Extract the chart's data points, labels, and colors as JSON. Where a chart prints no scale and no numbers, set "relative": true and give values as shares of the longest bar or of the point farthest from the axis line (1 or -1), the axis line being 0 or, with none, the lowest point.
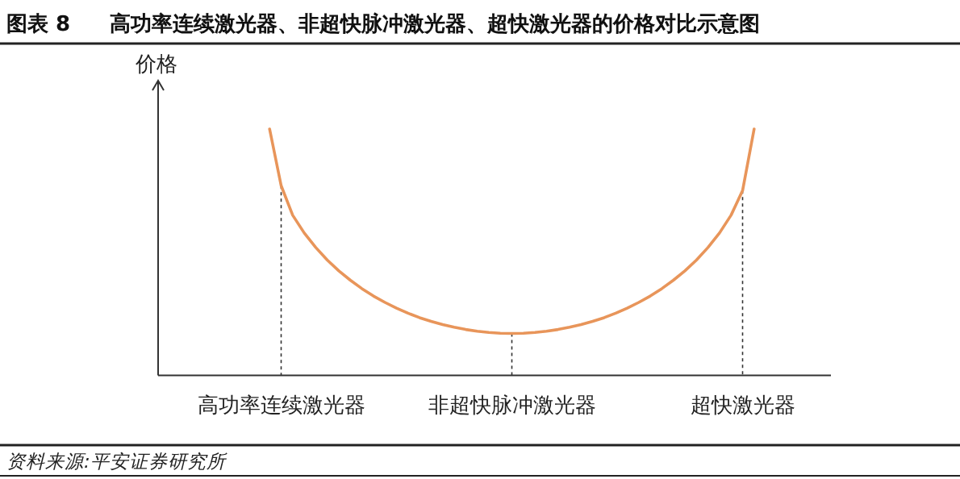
{
  "chart_data": {
    "type": "line",
    "title": "图表 8",
    "subtitle": "高功率连续激光器、非超快脉冲激光器、超快激光器的价格对比示意图",
    "ylabel": "价格",
    "relative": true,
    "categories": [
      null,
      "高功率连续激光器",
      null,
      null,
      null,
      null,
      null,
      null,
      null,
      null,
      null,
      null,
      null,
      null,
      null,
      null,
      null,
      null,
      null,
      null,
      null,
      "非超快脉冲激光器",
      null,
      null,
      null,
      null,
      null,
      null,
      null,
      null,
      null,
      null,
      null,
      null,
      null,
      null,
      null,
      null,
      null,
      null,
      null,
      "超快激光器",
      null
    ],
    "series": [
      {
        "color": "#e8955a",
        "values": [
          1.0,
          0.77,
          0.65,
          0.578,
          0.519,
          0.468,
          0.424,
          0.386,
          0.352,
          0.322,
          0.296,
          0.273,
          0.252,
          0.234,
          0.219,
          0.206,
          0.195,
          0.186,
          0.179,
          0.174,
          0.171,
          0.17,
          0.171,
          0.174,
          0.179,
          0.186,
          0.195,
          0.206,
          0.219,
          0.234,
          0.252,
          0.273,
          0.296,
          0.322,
          0.352,
          0.386,
          0.424,
          0.468,
          0.519,
          0.578,
          0.65,
          0.75,
          1.0
        ]
      }
    ],
    "annotations": [
      "资料来源:平安证券研究所"
    ]
  }
}
